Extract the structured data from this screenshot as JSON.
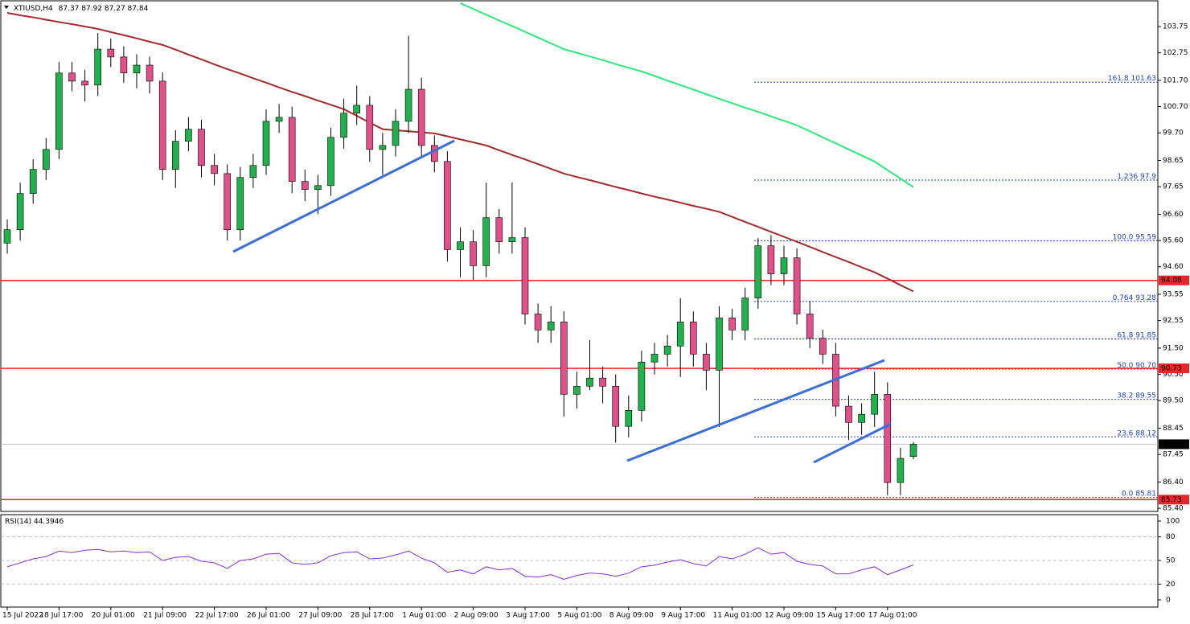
{
  "chart_data": {
    "type": "candlestick",
    "symbol": "XTIUSD,H4",
    "categories": [
      "15 Jul 2022",
      null,
      null,
      null,
      "18 Jul 17:00",
      null,
      null,
      null,
      "20 Jul 01:00",
      null,
      null,
      null,
      "21 Jul 09:00",
      null,
      null,
      null,
      "22 Jul 17:00",
      null,
      null,
      null,
      "26 Jul 01:00",
      null,
      null,
      null,
      "27 Jul 09:00",
      null,
      null,
      null,
      "28 Jul 17:00",
      null,
      null,
      null,
      "1 Aug 01:00",
      null,
      null,
      null,
      "2 Aug 09:00",
      null,
      null,
      null,
      "3 Aug 17:00",
      null,
      null,
      null,
      "5 Aug 01:00",
      null,
      null,
      null,
      "8 Aug 09:00",
      null,
      null,
      null,
      "9 Aug 17:00",
      null,
      null,
      null,
      "11 Aug 01:00",
      null,
      null,
      null,
      "12 Aug 09:00",
      null,
      null,
      null,
      "15 Aug 17:00",
      null,
      null,
      null,
      "17 Aug 01:00",
      null,
      null
    ],
    "candles": [
      [
        95.5,
        96.4,
        95.1,
        96.01
      ],
      [
        96.01,
        97.8,
        95.6,
        97.39
      ],
      [
        97.39,
        98.7,
        97.0,
        98.31
      ],
      [
        98.31,
        99.5,
        97.9,
        99.07
      ],
      [
        99.07,
        102.4,
        98.7,
        101.98
      ],
      [
        101.98,
        102.4,
        101.3,
        101.67
      ],
      [
        101.67,
        102.1,
        100.9,
        101.52
      ],
      [
        101.52,
        103.5,
        101.1,
        102.89
      ],
      [
        102.89,
        103.3,
        102.2,
        102.59
      ],
      [
        102.59,
        103.0,
        101.6,
        101.98
      ],
      [
        101.98,
        102.7,
        101.4,
        102.28
      ],
      [
        102.28,
        102.6,
        101.2,
        101.67
      ],
      [
        101.67,
        102.0,
        97.9,
        98.31
      ],
      [
        98.31,
        99.8,
        97.6,
        99.38
      ],
      [
        99.38,
        100.3,
        99.0,
        99.84
      ],
      [
        99.84,
        100.2,
        98.0,
        98.46
      ],
      [
        98.46,
        98.9,
        97.7,
        98.15
      ],
      [
        98.15,
        98.5,
        95.6,
        96.01
      ],
      [
        96.01,
        98.4,
        95.6,
        98.0
      ],
      [
        98.0,
        98.9,
        97.6,
        98.46
      ],
      [
        98.46,
        100.6,
        98.1,
        100.14
      ],
      [
        100.14,
        100.8,
        99.7,
        100.29
      ],
      [
        100.29,
        100.7,
        97.4,
        97.85
      ],
      [
        97.85,
        98.3,
        97.1,
        97.54
      ],
      [
        97.54,
        98.1,
        96.6,
        97.69
      ],
      [
        97.69,
        99.9,
        97.3,
        99.53
      ],
      [
        99.53,
        101.0,
        99.1,
        100.45
      ],
      [
        100.45,
        101.5,
        100.0,
        100.75
      ],
      [
        100.75,
        101.1,
        98.6,
        99.07
      ],
      [
        99.07,
        99.7,
        98.1,
        99.22
      ],
      [
        99.22,
        100.6,
        98.8,
        100.14
      ],
      [
        100.14,
        103.4,
        99.7,
        101.36
      ],
      [
        101.36,
        101.8,
        98.8,
        99.22
      ],
      [
        99.22,
        99.6,
        98.2,
        98.61
      ],
      [
        98.61,
        99.0,
        94.8,
        95.25
      ],
      [
        95.25,
        96.1,
        94.2,
        95.55
      ],
      [
        95.55,
        96.0,
        94.1,
        94.64
      ],
      [
        94.64,
        97.8,
        94.2,
        96.47
      ],
      [
        96.47,
        96.8,
        95.1,
        95.55
      ],
      [
        95.55,
        97.8,
        95.1,
        95.71
      ],
      [
        95.71,
        96.1,
        92.4,
        92.8
      ],
      [
        92.8,
        93.2,
        91.7,
        92.19
      ],
      [
        92.19,
        93.1,
        91.7,
        92.5
      ],
      [
        92.5,
        92.9,
        88.9,
        89.74
      ],
      [
        89.74,
        90.6,
        89.2,
        90.05
      ],
      [
        90.05,
        91.8,
        89.9,
        90.36
      ],
      [
        90.36,
        90.8,
        89.4,
        90.05
      ],
      [
        90.05,
        90.5,
        87.9,
        88.52
      ],
      [
        88.52,
        89.7,
        88.1,
        89.13
      ],
      [
        89.13,
        91.4,
        88.7,
        90.97
      ],
      [
        90.97,
        91.7,
        90.5,
        91.27
      ],
      [
        91.27,
        92.0,
        90.8,
        91.58
      ],
      [
        91.58,
        93.4,
        90.4,
        92.5
      ],
      [
        92.5,
        92.9,
        90.8,
        91.27
      ],
      [
        91.27,
        91.7,
        89.9,
        90.66
      ],
      [
        90.66,
        93.1,
        88.5,
        92.65
      ],
      [
        92.65,
        93.0,
        91.8,
        92.19
      ],
      [
        92.19,
        93.8,
        91.8,
        93.41
      ],
      [
        93.41,
        95.7,
        93.0,
        95.4
      ],
      [
        95.4,
        95.8,
        93.9,
        94.33
      ],
      [
        94.33,
        95.4,
        93.9,
        94.94
      ],
      [
        94.94,
        95.3,
        92.4,
        92.8
      ],
      [
        92.8,
        93.3,
        91.5,
        91.88
      ],
      [
        91.88,
        92.2,
        90.9,
        91.27
      ],
      [
        91.27,
        91.7,
        88.9,
        89.29
      ],
      [
        89.29,
        89.7,
        88.0,
        88.67
      ],
      [
        88.67,
        89.4,
        88.2,
        88.98
      ],
      [
        88.98,
        90.6,
        88.5,
        89.74
      ],
      [
        89.74,
        90.2,
        85.9,
        86.38
      ],
      [
        86.38,
        87.7,
        85.9,
        87.3
      ],
      [
        87.37,
        87.92,
        87.27,
        87.84
      ]
    ],
    "up_color": "#22b14c",
    "down_color": "#e0508a",
    "moving_averages": [
      {
        "color": "#a52a2a",
        "values": [
          104.27,
          104.18,
          104.1,
          104.01,
          103.92,
          103.84,
          103.75,
          103.66,
          103.54,
          103.42,
          103.3,
          103.17,
          103.05,
          102.87,
          102.68,
          102.5,
          102.31,
          102.13,
          101.96,
          101.78,
          101.61,
          101.43,
          101.26,
          101.1,
          100.93,
          100.77,
          100.6,
          100.35,
          100.09,
          99.84,
          99.8,
          99.76,
          99.72,
          99.68,
          99.57,
          99.45,
          99.34,
          99.22,
          99.04,
          98.86,
          98.69,
          98.51,
          98.33,
          98.15,
          98.02,
          97.9,
          97.77,
          97.64,
          97.52,
          97.39,
          97.27,
          97.16,
          97.04,
          96.92,
          96.81,
          96.69,
          96.5,
          96.31,
          96.12,
          95.93,
          95.74,
          95.55,
          95.36,
          95.16,
          94.97,
          94.78,
          94.58,
          94.39,
          94.15,
          93.9,
          93.66
        ]
      },
      {
        "color": "#2ee87a",
        "values": [
          null,
          null,
          null,
          null,
          null,
          null,
          null,
          null,
          null,
          null,
          null,
          null,
          null,
          null,
          null,
          null,
          null,
          null,
          null,
          null,
          null,
          null,
          null,
          null,
          null,
          null,
          null,
          null,
          null,
          null,
          null,
          null,
          null,
          null,
          null,
          104.64,
          104.42,
          104.2,
          103.98,
          103.77,
          103.55,
          103.33,
          103.11,
          102.89,
          102.75,
          102.61,
          102.47,
          102.32,
          102.18,
          102.04,
          101.87,
          101.69,
          101.52,
          101.35,
          101.17,
          101.0,
          100.83,
          100.66,
          100.5,
          100.33,
          100.16,
          99.99,
          99.76,
          99.53,
          99.3,
          99.07,
          98.84,
          98.61,
          98.28,
          97.96,
          97.63
        ]
      }
    ],
    "ylim": [
      85.28,
      104.73
    ],
    "yticks": [
      103.75,
      102.75,
      {
        "value": 101.7,
        "label": "101.70"
      },
      {
        "value": 100.7,
        "label": "100.70"
      },
      {
        "value": 99.7,
        "label": "99.70"
      },
      98.65,
      97.65,
      {
        "value": 96.6,
        "label": "96.60"
      },
      {
        "value": 95.6,
        "label": "95.60"
      },
      {
        "value": 94.6,
        "label": "94.60"
      },
      93.55,
      92.55,
      {
        "value": 91.5,
        "label": "91.50"
      },
      {
        "value": 90.5,
        "label": "90.50"
      },
      {
        "value": 89.5,
        "label": "89.50"
      },
      88.45,
      87.45,
      {
        "value": 86.4,
        "label": "86.40"
      },
      {
        "value": 85.4,
        "label": "85.40"
      }
    ],
    "levels": [
      94.08,
      90.73,
      85.73
    ],
    "level_color": "#e8262a",
    "last_price": 87.84,
    "fibonacci": [
      {
        "level": "161.8",
        "price": 101.63
      },
      {
        "level": "1.236",
        "price": 97.9
      },
      {
        "level": "100.0",
        "price": 95.59
      },
      {
        "level": "0.764",
        "price": 93.28
      },
      {
        "level": "61.8",
        "price": 91.85
      },
      {
        "level": "50.0",
        "price": {
          "value": 90.7,
          "label": "90.70"
        }
      },
      {
        "level": "38.2",
        "price": 89.55
      },
      {
        "level": "23.6",
        "price": 88.12
      },
      {
        "level": "0.0",
        "price": 85.81
      }
    ],
    "rsi": {
      "name": "RSI(14)",
      "color": "#8a2be2",
      "ylim": [
        0,
        100
      ],
      "yticks": [
        0,
        20,
        50,
        80,
        100
      ],
      "values": [
        42,
        47,
        52,
        55,
        62,
        60,
        63,
        64,
        61,
        62,
        60,
        61,
        50,
        54,
        55,
        49,
        47,
        40,
        50,
        52,
        58,
        59,
        47,
        45,
        47,
        56,
        60,
        61,
        52,
        53,
        57,
        62,
        53,
        47,
        35,
        38,
        33,
        42,
        38,
        40,
        30,
        29,
        32,
        26,
        31,
        34,
        33,
        30,
        34,
        42,
        44,
        48,
        51,
        46,
        43,
        55,
        52,
        58,
        66,
        58,
        60,
        49,
        45,
        43,
        33,
        33,
        38,
        42,
        32,
        38,
        44.3946
      ]
    }
  }
}
